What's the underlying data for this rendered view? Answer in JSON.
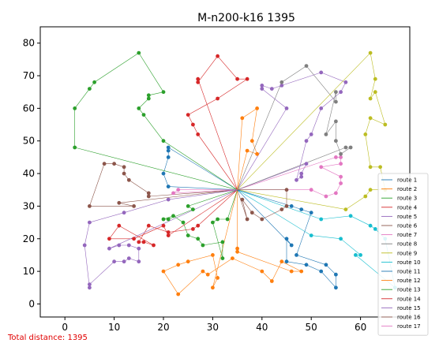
{
  "chart_data": {
    "type": "line",
    "title": "M-n200-k16 1395",
    "xlabel": "",
    "ylabel": "",
    "xlim": [
      -5,
      70
    ],
    "ylim": [
      -4,
      85
    ],
    "xticks": [
      0,
      10,
      20,
      30,
      40,
      50,
      60
    ],
    "yticks": [
      0,
      10,
      20,
      30,
      40,
      50,
      60,
      70,
      80
    ],
    "grid": false,
    "legend_position": "bottom-right",
    "depot": [
      35,
      35
    ],
    "series": [
      {
        "name": "route 1",
        "color": "#1f77b4",
        "points": [
          [
            35,
            35
          ],
          [
            21,
            48
          ],
          [
            21,
            47
          ],
          [
            21,
            45
          ],
          [
            20,
            40
          ],
          [
            21,
            36
          ],
          [
            35,
            35
          ]
        ]
      },
      {
        "name": "route 2",
        "color": "#ff7f0e",
        "points": [
          [
            35,
            35
          ],
          [
            37,
            47
          ],
          [
            39,
            46
          ],
          [
            38,
            50
          ],
          [
            39,
            60
          ],
          [
            36,
            57
          ],
          [
            35,
            35
          ]
        ]
      },
      {
        "name": "route 3",
        "color": "#2ca02c",
        "points": [
          [
            35,
            35
          ],
          [
            20,
            50
          ],
          [
            16,
            58
          ],
          [
            15,
            60
          ],
          [
            17,
            63
          ],
          [
            17,
            64
          ],
          [
            20,
            65
          ],
          [
            15,
            77
          ],
          [
            6,
            68
          ],
          [
            5,
            66
          ],
          [
            2,
            60
          ],
          [
            2,
            48
          ],
          [
            35,
            35
          ]
        ]
      },
      {
        "name": "route 4",
        "color": "#d62728",
        "points": [
          [
            35,
            35
          ],
          [
            27,
            69
          ],
          [
            27,
            68
          ],
          [
            31,
            76
          ],
          [
            35,
            69
          ],
          [
            37,
            69
          ],
          [
            31,
            63
          ],
          [
            25,
            58
          ],
          [
            26,
            55
          ],
          [
            27,
            52
          ],
          [
            35,
            35
          ]
        ]
      },
      {
        "name": "route 5",
        "color": "#9467bd",
        "points": [
          [
            35,
            35
          ],
          [
            49,
            43
          ],
          [
            48,
            40
          ],
          [
            48,
            39
          ],
          [
            47,
            38
          ],
          [
            49,
            50
          ],
          [
            50,
            52
          ],
          [
            52,
            60
          ],
          [
            56,
            65
          ],
          [
            57,
            68
          ],
          [
            52,
            71
          ],
          [
            44,
            67
          ],
          [
            42,
            66
          ],
          [
            40,
            67
          ],
          [
            40,
            66
          ],
          [
            45,
            60
          ],
          [
            35,
            35
          ]
        ]
      },
      {
        "name": "route 6",
        "color": "#8c564b",
        "points": [
          [
            35,
            35
          ],
          [
            17,
            33
          ],
          [
            17,
            34
          ],
          [
            13,
            38
          ],
          [
            12,
            40
          ],
          [
            12,
            42
          ],
          [
            10,
            43
          ],
          [
            8,
            43
          ],
          [
            5,
            30
          ],
          [
            14,
            30
          ],
          [
            11,
            31
          ],
          [
            35,
            35
          ]
        ]
      },
      {
        "name": "route 7",
        "color": "#e377c2",
        "points": [
          [
            35,
            35
          ],
          [
            55,
            45
          ],
          [
            56,
            45
          ],
          [
            56,
            43
          ],
          [
            52,
            42
          ],
          [
            56,
            39
          ],
          [
            56,
            37
          ],
          [
            55,
            34
          ],
          [
            53,
            33
          ],
          [
            50,
            35
          ],
          [
            35,
            35
          ]
        ]
      },
      {
        "name": "route 8",
        "color": "#7f7f7f",
        "points": [
          [
            35,
            35
          ],
          [
            57,
            48
          ],
          [
            58,
            48
          ],
          [
            56,
            46
          ],
          [
            55,
            50
          ],
          [
            55,
            56
          ],
          [
            53,
            52
          ],
          [
            55,
            65
          ],
          [
            55,
            62
          ],
          [
            49,
            73
          ],
          [
            44,
            68
          ],
          [
            35,
            35
          ]
        ]
      },
      {
        "name": "route 9",
        "color": "#bcbd22",
        "points": [
          [
            35,
            35
          ],
          [
            57,
            29
          ],
          [
            61,
            33
          ],
          [
            62,
            35
          ],
          [
            65,
            35
          ],
          [
            64,
            42
          ],
          [
            62,
            42
          ],
          [
            61,
            52
          ],
          [
            62,
            57
          ],
          [
            65,
            55
          ],
          [
            63,
            65
          ],
          [
            62,
            63
          ],
          [
            63,
            69
          ],
          [
            62,
            77
          ],
          [
            35,
            35
          ]
        ]
      },
      {
        "name": "route 10",
        "color": "#17becf",
        "points": [
          [
            35,
            35
          ],
          [
            52,
            26
          ],
          [
            58,
            27
          ],
          [
            62,
            24
          ],
          [
            63,
            23
          ],
          [
            65,
            20
          ],
          [
            67,
            5
          ],
          [
            59,
            15
          ],
          [
            60,
            15
          ],
          [
            56,
            20
          ],
          [
            50,
            21
          ],
          [
            35,
            35
          ]
        ]
      },
      {
        "name": "route 11",
        "color": "#1f77b4",
        "points": [
          [
            35,
            35
          ],
          [
            46,
            30
          ],
          [
            48,
            29
          ],
          [
            50,
            28
          ],
          [
            47,
            15
          ],
          [
            53,
            12
          ],
          [
            55,
            9
          ],
          [
            55,
            5
          ],
          [
            52,
            10
          ],
          [
            49,
            12
          ],
          [
            45,
            13
          ],
          [
            45,
            20
          ],
          [
            46,
            18
          ],
          [
            35,
            35
          ]
        ]
      },
      {
        "name": "route 12",
        "color": "#ff7f0e",
        "points": [
          [
            35,
            35
          ],
          [
            35,
            17
          ],
          [
            35,
            16
          ],
          [
            46,
            10
          ],
          [
            48,
            10
          ],
          [
            44,
            13
          ],
          [
            42,
            7
          ],
          [
            40,
            10
          ],
          [
            34,
            14
          ],
          [
            29,
            9
          ],
          [
            28,
            10
          ],
          [
            23,
            3
          ],
          [
            20,
            10
          ],
          [
            23,
            12
          ],
          [
            25,
            13
          ],
          [
            30,
            15
          ],
          [
            31,
            8
          ],
          [
            30,
            5
          ],
          [
            35,
            35
          ]
        ]
      },
      {
        "name": "route 13",
        "color": "#2ca02c",
        "points": [
          [
            35,
            35
          ],
          [
            25,
            30
          ],
          [
            26,
            29
          ],
          [
            21,
            26
          ],
          [
            20,
            26
          ],
          [
            22,
            27
          ],
          [
            24,
            25
          ],
          [
            25,
            21
          ],
          [
            27,
            20
          ],
          [
            28,
            18
          ],
          [
            32,
            19
          ],
          [
            32,
            14
          ],
          [
            30,
            25
          ],
          [
            31,
            26
          ],
          [
            33,
            26
          ],
          [
            35,
            35
          ]
        ]
      },
      {
        "name": "route 14",
        "color": "#d62728",
        "points": [
          [
            35,
            35
          ],
          [
            27,
            24
          ],
          [
            26,
            23
          ],
          [
            21,
            22
          ],
          [
            17,
            24
          ],
          [
            15,
            19
          ],
          [
            16,
            19
          ],
          [
            18,
            18
          ],
          [
            11,
            24
          ],
          [
            9,
            20
          ],
          [
            14,
            20
          ],
          [
            20,
            24
          ],
          [
            21,
            21
          ],
          [
            35,
            35
          ]
        ]
      },
      {
        "name": "route 15",
        "color": "#9467bd",
        "points": [
          [
            35,
            35
          ],
          [
            21,
            32
          ],
          [
            12,
            28
          ],
          [
            5,
            25
          ],
          [
            4,
            18
          ],
          [
            5,
            5
          ],
          [
            5,
            6
          ],
          [
            10,
            13
          ],
          [
            12,
            13
          ],
          [
            13,
            14
          ],
          [
            15,
            13
          ],
          [
            15,
            17
          ],
          [
            13,
            18
          ],
          [
            11,
            18
          ],
          [
            9,
            17
          ],
          [
            35,
            35
          ]
        ]
      },
      {
        "name": "route 16",
        "color": "#8c564b",
        "points": [
          [
            35,
            35
          ],
          [
            45,
            35
          ],
          [
            45,
            30
          ],
          [
            44,
            29
          ],
          [
            40,
            26
          ],
          [
            38,
            28
          ],
          [
            36,
            32
          ],
          [
            37,
            26
          ],
          [
            35,
            35
          ]
        ]
      },
      {
        "name": "route 17",
        "color": "#e377c2",
        "points": [
          [
            35,
            35
          ],
          [
            22,
            34
          ],
          [
            23,
            35
          ],
          [
            35,
            35
          ]
        ]
      }
    ],
    "annotation": "Total distance: 1395"
  }
}
